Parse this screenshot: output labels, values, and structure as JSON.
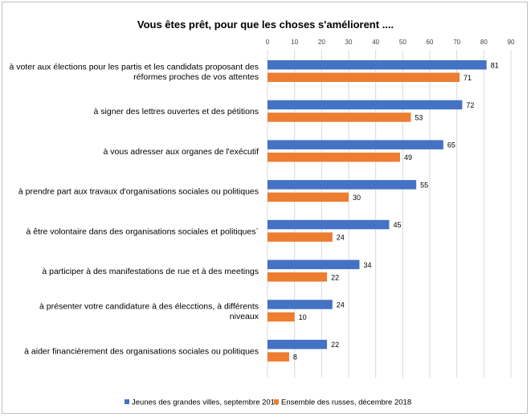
{
  "chart_data": {
    "type": "bar",
    "orientation": "horizontal",
    "title": "Vous êtes prêt, pour que les choses s'améliorent ....",
    "categories": [
      [
        "à voter aux élections pour les partis et les candidats proposant des",
        "réformes proches de vos attentes"
      ],
      [
        "à signer des lettres ouvertes et des pétitions"
      ],
      [
        "à vous adresser aux organes de l'exécutif"
      ],
      [
        "à prendre part aux travaux d'organisations sociales ou politiques"
      ],
      [
        "à être volontaire dans des organisations sociales et politiques`"
      ],
      [
        "à participer à des manifestations de rue et à des meetings"
      ],
      [
        "à présenter votre candidature à des élecctions, à différents",
        "niveaux"
      ],
      [
        "à aider financièrement des organisations sociales ou politiques"
      ]
    ],
    "series": [
      {
        "name": "Jeunes des grandes villes, septembre 2018",
        "color": "#4472c4",
        "values": [
          81,
          72,
          65,
          55,
          45,
          34,
          24,
          22
        ]
      },
      {
        "name": "Ensemble des russes, décembre 2018",
        "color": "#ed7d31",
        "values": [
          71,
          53,
          49,
          30,
          24,
          22,
          10,
          8
        ]
      }
    ],
    "xlim": [
      0,
      90
    ],
    "xticks": [
      0,
      10,
      20,
      30,
      40,
      50,
      60,
      70,
      80,
      90
    ],
    "axis_position": "top",
    "grid": true,
    "legend_position": "bottom",
    "data_labels": true
  }
}
